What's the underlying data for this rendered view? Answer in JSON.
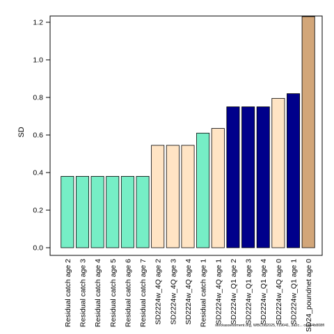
{
  "chart_data": {
    "type": "bar",
    "title": "",
    "xlabel": "",
    "ylabel": "SD",
    "ylim": [
      0,
      1.23
    ],
    "yticks": [
      "0.0",
      "0.2",
      "0.4",
      "0.6",
      "0.8",
      "1.0",
      "1.2"
    ],
    "grid": false,
    "legend": "none",
    "categories": [
      "Residual catch age 2",
      "Residual catch age 3",
      "Residual catch age 4",
      "Residual catch age 5",
      "Residual catch age 6",
      "Residual catch age 7",
      "SD2224w_4Q age 2",
      "SD2224w_4Q age 3",
      "SD2224w_4Q age 4",
      "Residual catch age 1",
      "SD2224w_4Q age 1",
      "SD2224w_Q1 age 2",
      "SD2224w_Q1 age 3",
      "SD2224w_Q1 age 4",
      "SD2224w_4Q age 0",
      "SD2224w_Q1 age 1",
      "SD24_poundnet age 0"
    ],
    "values": [
      0.38,
      0.38,
      0.38,
      0.38,
      0.38,
      0.38,
      0.545,
      0.545,
      0.545,
      0.61,
      0.635,
      0.75,
      0.75,
      0.75,
      0.795,
      0.82,
      1.23
    ],
    "bar_colors": [
      "#76EEC6",
      "#76EEC6",
      "#76EEC6",
      "#76EEC6",
      "#76EEC6",
      "#76EEC6",
      "#FFE4C4",
      "#FFE4C4",
      "#FFE4C4",
      "#76EEC6",
      "#FFE4C4",
      "#00008B",
      "#00008B",
      "#00008B",
      "#FFE4C4",
      "#00008B",
      "#D2A679"
    ]
  },
  "footer": {
    "text": "stockassessment.org, WBCod2025, r19041, 3a2c... cc464b808fl"
  }
}
